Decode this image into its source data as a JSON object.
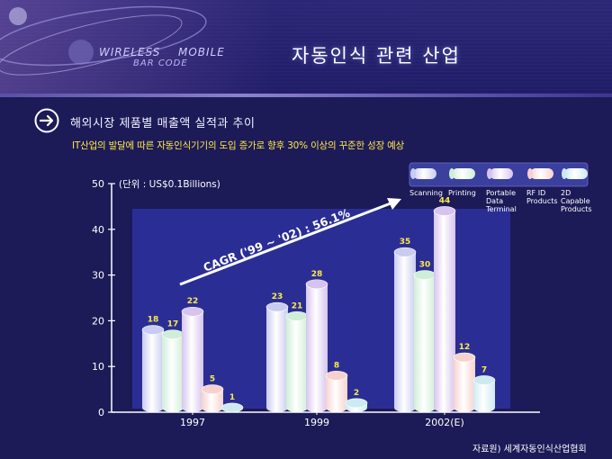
{
  "header": {
    "title": "자동인식 관련 산업",
    "logo_text": [
      "WIRELESS",
      "MOBILE",
      "BAR CODE"
    ]
  },
  "section": {
    "title": "해외시장 제품별 매출액 실적과 추이",
    "subtitle": "IT산업의 발달에 따른 자동인식기기의 도입 증가로 향후 30% 이상의 꾸준한 성장 예상"
  },
  "source": "자료원) 세계자동인식산업협회",
  "colors": {
    "background": "#1c1a57",
    "plot_background": "#2a2e94",
    "title_text": "#ffffff",
    "subtitle_text": "#ffe94a",
    "value_label": "#ffe94a",
    "series": [
      "#c9cbf0",
      "#cfeed8",
      "#d6c4ee",
      "#f6d2cf",
      "#cdeaf3"
    ]
  },
  "chart_data": {
    "type": "bar",
    "style": "3d-cylinder",
    "categories": [
      "1997",
      "1999",
      "2002(E)"
    ],
    "ylabel": "(단위 : US$0.1Billions)",
    "ylim": [
      0,
      50
    ],
    "yticks": [
      0,
      10,
      20,
      30,
      40,
      50
    ],
    "legend_position": "top-right",
    "series": [
      {
        "name": "Scanning",
        "values": [
          18,
          23,
          35
        ]
      },
      {
        "name": "Printing",
        "values": [
          17,
          21,
          30
        ]
      },
      {
        "name": "Portable Data Terminal",
        "values": [
          22,
          28,
          44
        ]
      },
      {
        "name": "RF ID Products",
        "values": [
          5,
          8,
          12
        ]
      },
      {
        "name": "2D Capable Products",
        "values": [
          1,
          2,
          7
        ]
      }
    ],
    "annotation": "CAGR ('99 ~ '02) : 56.1%",
    "grid": false
  }
}
